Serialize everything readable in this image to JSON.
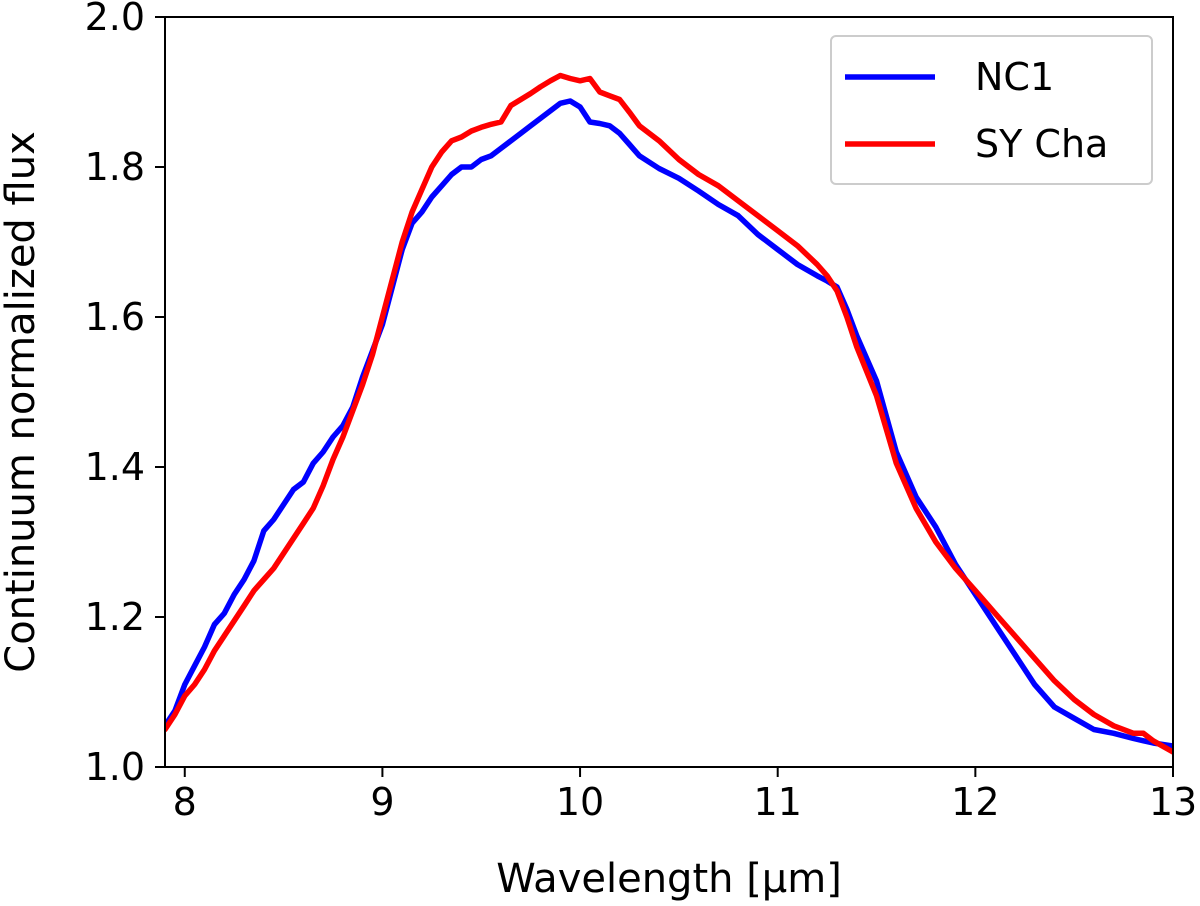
{
  "chart_data": {
    "type": "line",
    "title": "",
    "xlabel": "Wavelength [μm]",
    "ylabel": "Continuum normalized flux",
    "xlim": [
      7.9,
      13.0
    ],
    "ylim": [
      1.0,
      2.0
    ],
    "xticks": [
      8,
      9,
      10,
      11,
      12,
      13
    ],
    "xtick_labels": [
      "8",
      "9",
      "10",
      "11",
      "12",
      "13"
    ],
    "yticks": [
      1.0,
      1.2,
      1.4,
      1.6,
      1.8,
      2.0
    ],
    "ytick_labels": [
      "1.0",
      "1.2",
      "1.4",
      "1.6",
      "1.8",
      "2.0"
    ],
    "grid": false,
    "legend_position": "top-right",
    "series": [
      {
        "name": "NC1",
        "color": "#0000ff",
        "x": [
          7.9,
          7.95,
          8.0,
          8.05,
          8.1,
          8.15,
          8.2,
          8.25,
          8.3,
          8.35,
          8.4,
          8.45,
          8.5,
          8.55,
          8.6,
          8.65,
          8.7,
          8.75,
          8.8,
          8.85,
          8.9,
          8.95,
          9.0,
          9.05,
          9.1,
          9.15,
          9.2,
          9.25,
          9.3,
          9.35,
          9.4,
          9.45,
          9.5,
          9.55,
          9.6,
          9.65,
          9.7,
          9.75,
          9.8,
          9.85,
          9.9,
          9.95,
          10.0,
          10.05,
          10.1,
          10.15,
          10.2,
          10.25,
          10.3,
          10.4,
          10.5,
          10.6,
          10.7,
          10.8,
          10.9,
          11.0,
          11.1,
          11.2,
          11.25,
          11.3,
          11.35,
          11.4,
          11.5,
          11.6,
          11.7,
          11.8,
          11.9,
          12.0,
          12.1,
          12.2,
          12.3,
          12.4,
          12.5,
          12.6,
          12.7,
          12.8,
          12.9,
          13.0
        ],
        "y": [
          1.055,
          1.075,
          1.11,
          1.135,
          1.16,
          1.19,
          1.205,
          1.23,
          1.25,
          1.275,
          1.315,
          1.33,
          1.35,
          1.37,
          1.38,
          1.405,
          1.42,
          1.44,
          1.455,
          1.48,
          1.52,
          1.555,
          1.59,
          1.64,
          1.69,
          1.725,
          1.74,
          1.76,
          1.775,
          1.79,
          1.8,
          1.8,
          1.81,
          1.815,
          1.825,
          1.835,
          1.845,
          1.855,
          1.865,
          1.875,
          1.885,
          1.888,
          1.88,
          1.86,
          1.858,
          1.855,
          1.845,
          1.83,
          1.815,
          1.798,
          1.785,
          1.768,
          1.75,
          1.735,
          1.71,
          1.69,
          1.67,
          1.655,
          1.648,
          1.64,
          1.61,
          1.575,
          1.515,
          1.42,
          1.36,
          1.32,
          1.27,
          1.23,
          1.19,
          1.15,
          1.11,
          1.08,
          1.065,
          1.05,
          1.045,
          1.038,
          1.032,
          1.028
        ]
      },
      {
        "name": "SY Cha",
        "color": "#ff0000",
        "x": [
          7.9,
          7.95,
          8.0,
          8.05,
          8.1,
          8.15,
          8.2,
          8.25,
          8.3,
          8.35,
          8.4,
          8.45,
          8.5,
          8.55,
          8.6,
          8.65,
          8.7,
          8.75,
          8.8,
          8.85,
          8.9,
          8.95,
          9.0,
          9.05,
          9.1,
          9.15,
          9.2,
          9.25,
          9.3,
          9.35,
          9.4,
          9.45,
          9.5,
          9.55,
          9.6,
          9.65,
          9.7,
          9.75,
          9.8,
          9.85,
          9.9,
          9.95,
          10.0,
          10.05,
          10.1,
          10.15,
          10.2,
          10.25,
          10.3,
          10.4,
          10.5,
          10.6,
          10.7,
          10.8,
          10.9,
          11.0,
          11.1,
          11.2,
          11.25,
          11.3,
          11.35,
          11.4,
          11.5,
          11.6,
          11.7,
          11.8,
          11.9,
          12.0,
          12.1,
          12.2,
          12.3,
          12.4,
          12.5,
          12.6,
          12.7,
          12.8,
          12.85,
          12.9,
          13.0
        ],
        "y": [
          1.05,
          1.07,
          1.095,
          1.11,
          1.13,
          1.155,
          1.175,
          1.195,
          1.215,
          1.235,
          1.25,
          1.265,
          1.285,
          1.305,
          1.325,
          1.345,
          1.375,
          1.41,
          1.44,
          1.475,
          1.51,
          1.55,
          1.6,
          1.65,
          1.7,
          1.74,
          1.77,
          1.8,
          1.82,
          1.835,
          1.84,
          1.848,
          1.853,
          1.857,
          1.86,
          1.882,
          1.89,
          1.898,
          1.907,
          1.915,
          1.922,
          1.918,
          1.915,
          1.918,
          1.9,
          1.895,
          1.89,
          1.873,
          1.855,
          1.835,
          1.81,
          1.79,
          1.775,
          1.755,
          1.735,
          1.715,
          1.695,
          1.67,
          1.655,
          1.635,
          1.6,
          1.56,
          1.495,
          1.405,
          1.345,
          1.3,
          1.265,
          1.235,
          1.205,
          1.175,
          1.145,
          1.115,
          1.09,
          1.07,
          1.055,
          1.045,
          1.045,
          1.035,
          1.02
        ]
      }
    ]
  }
}
